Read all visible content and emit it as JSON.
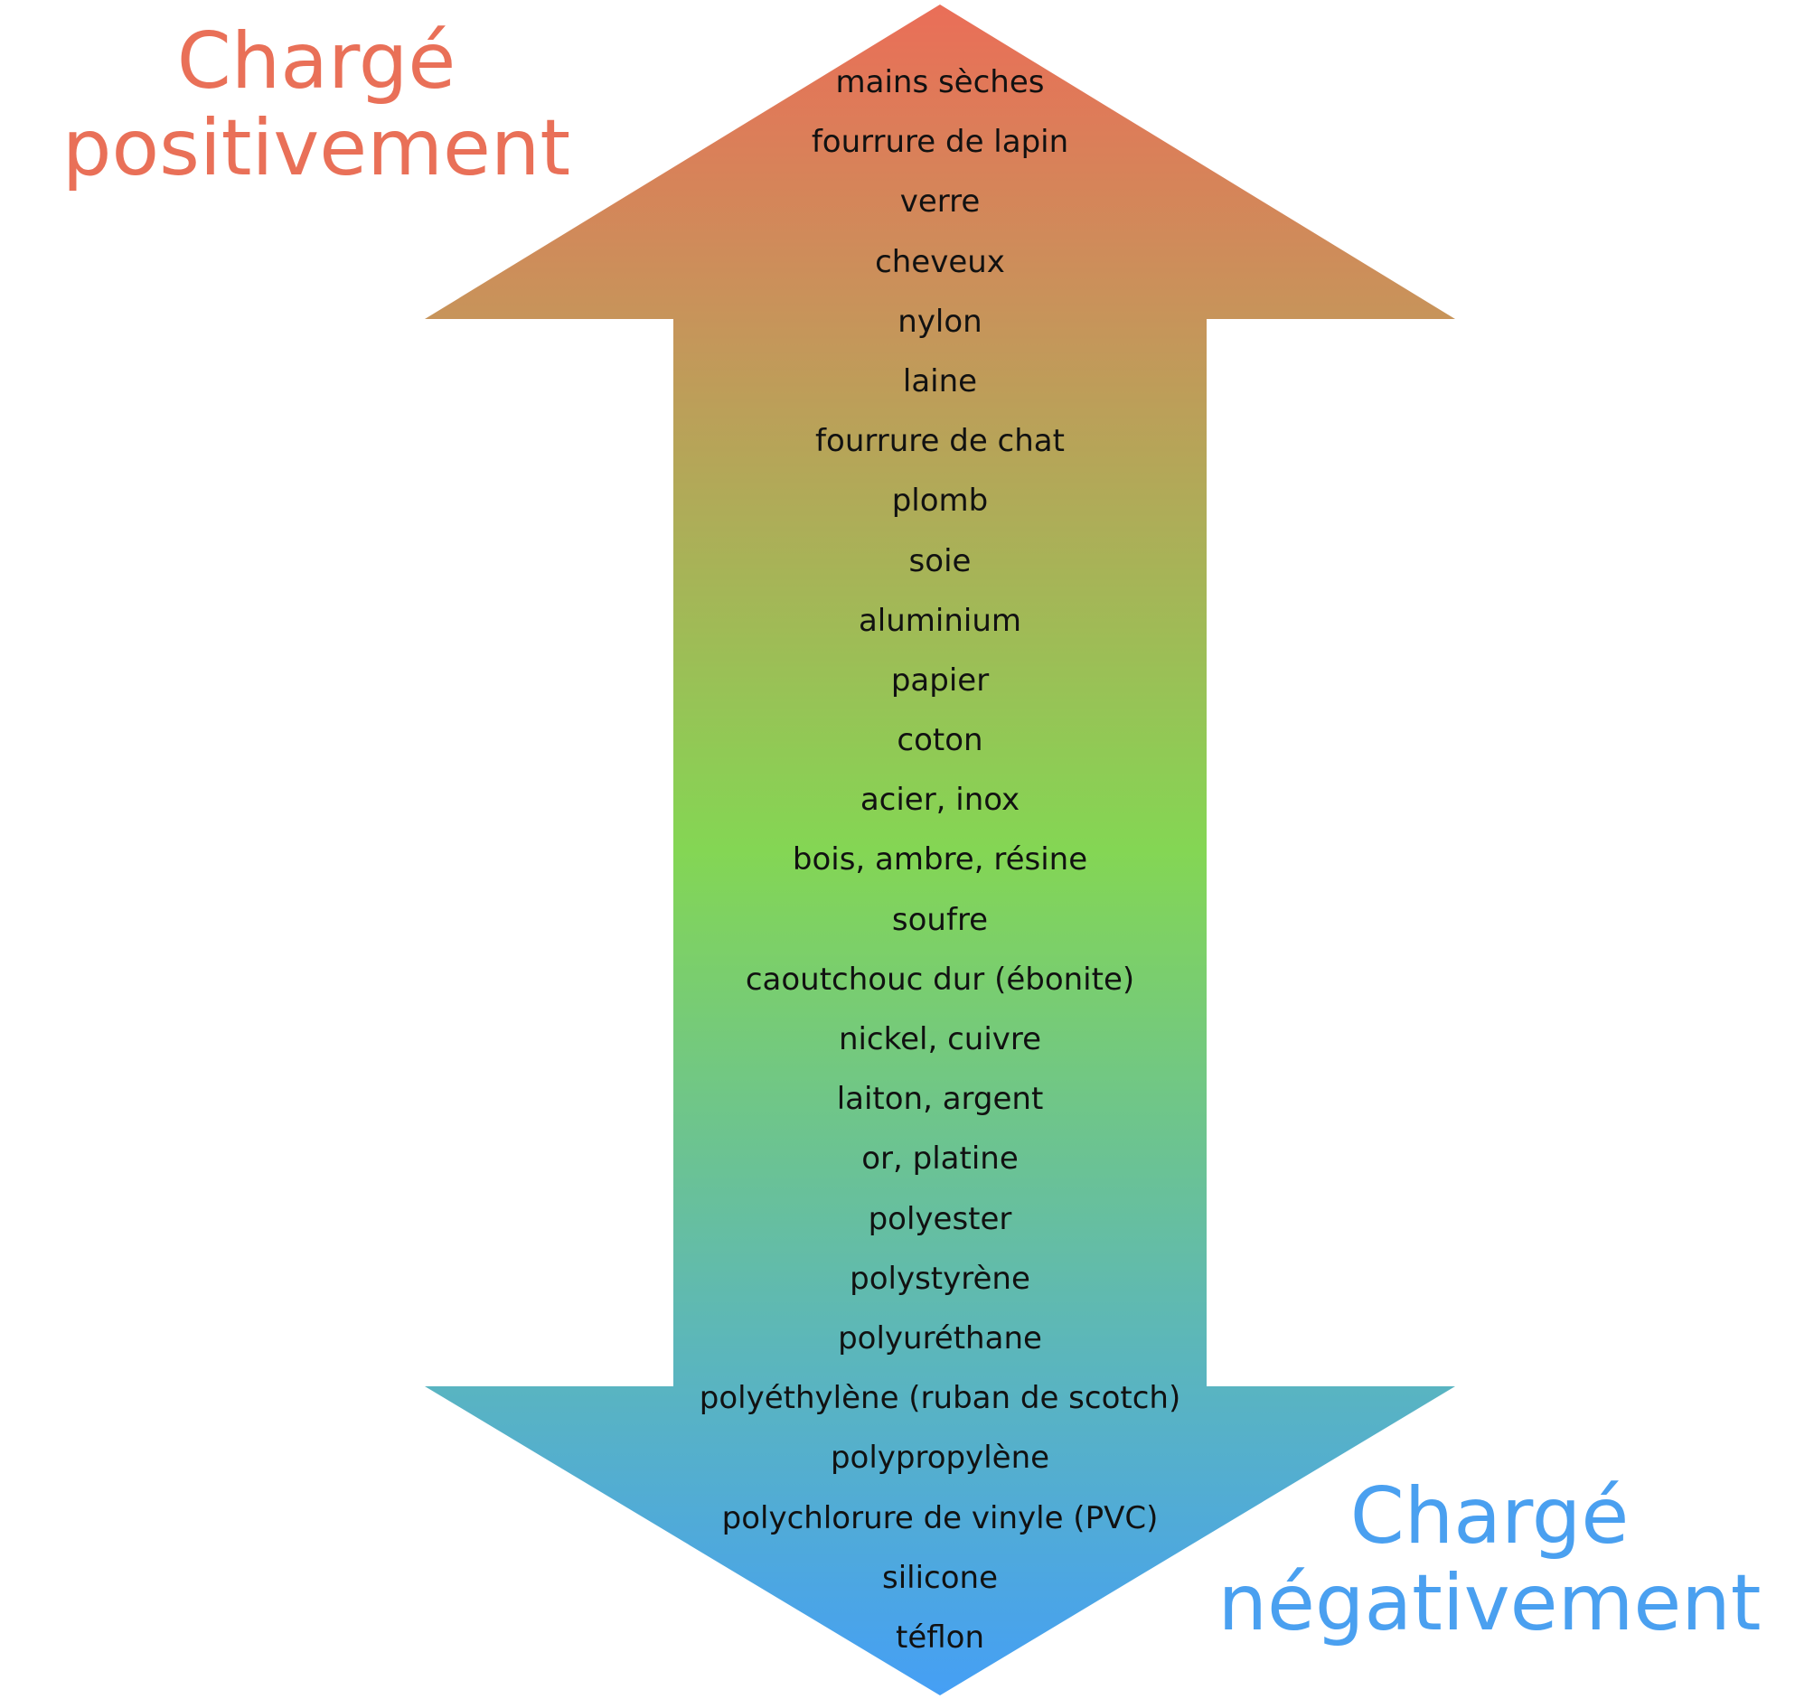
{
  "labels": {
    "positive_line1": "Chargé",
    "positive_line2": "positivement",
    "negative_line1": "Chargé",
    "negative_line2": "négativement"
  },
  "colors": {
    "positive": "#e97058",
    "middle": "#84d654",
    "negative": "#4aa0f0",
    "top_arrow": "#ea6e58",
    "bottom_arrow": "#459ff5",
    "text": "#111111"
  },
  "materials": [
    "mains sèches",
    "fourrure de lapin",
    "verre",
    "cheveux",
    "nylon",
    "laine",
    "fourrure de chat",
    "plomb",
    "soie",
    "aluminium",
    "papier",
    "coton",
    "acier, inox",
    "bois, ambre, résine",
    "soufre",
    "caoutchouc dur (ébonite)",
    "nickel, cuivre",
    "laiton, argent",
    "or, platine",
    "polyester",
    "polystyrène",
    "polyuréthane",
    "polyéthylène (ruban de scotch)",
    "polypropylène",
    "polychlorure de vinyle (PVC)",
    "silicone",
    "téflon"
  ]
}
